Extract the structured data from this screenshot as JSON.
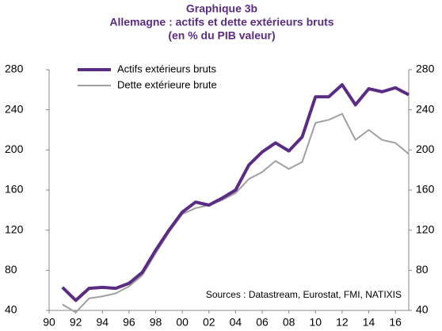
{
  "chart_data": {
    "type": "line",
    "title": [
      "Graphique 3b",
      "Allemagne : actifs et dette extérieurs bruts",
      "(en % du PIB valeur)"
    ],
    "annotation": "Sources : Datastream, Eurostat, FMI, NATIXIS",
    "x": [
      1991,
      1992,
      1993,
      1994,
      1995,
      1996,
      1997,
      1998,
      1999,
      2000,
      2001,
      2002,
      2003,
      2004,
      2005,
      2006,
      2007,
      2008,
      2009,
      2010,
      2011,
      2012,
      2013,
      2014,
      2015,
      2016,
      2017
    ],
    "series": [
      {
        "name": "Actifs extérieurs bruts",
        "color": "#5b2c83",
        "width": 4,
        "values": [
          63,
          50,
          62,
          63,
          62,
          67,
          78,
          100,
          120,
          138,
          148,
          145,
          152,
          160,
          185,
          198,
          207,
          199,
          213,
          253,
          253,
          265,
          245,
          261,
          258,
          262,
          255
        ]
      },
      {
        "name": "Dette extérieure brute",
        "color": "#a0a0a0",
        "width": 2,
        "values": [
          46,
          38,
          52,
          54,
          57,
          64,
          75,
          97,
          118,
          136,
          142,
          145,
          150,
          157,
          171,
          178,
          189,
          181,
          188,
          227,
          230,
          236,
          210,
          220,
          210,
          207,
          196
        ]
      }
    ],
    "xlim": [
      1990,
      2017
    ],
    "xticks": [
      {
        "value": 1990,
        "label": "90"
      },
      {
        "value": 1992,
        "label": "92"
      },
      {
        "value": 1994,
        "label": "94"
      },
      {
        "value": 1996,
        "label": "96"
      },
      {
        "value": 1998,
        "label": "98"
      },
      {
        "value": 2000,
        "label": "00"
      },
      {
        "value": 2002,
        "label": "02"
      },
      {
        "value": 2004,
        "label": "04"
      },
      {
        "value": 2006,
        "label": "06"
      },
      {
        "value": 2008,
        "label": "08"
      },
      {
        "value": 2010,
        "label": "10"
      },
      {
        "value": 2012,
        "label": "12"
      },
      {
        "value": 2014,
        "label": "14"
      },
      {
        "value": 2016,
        "label": "16"
      }
    ],
    "ylim": [
      40,
      280
    ],
    "yticks": [
      40,
      80,
      120,
      160,
      200,
      240,
      280
    ],
    "y2lim": [
      40,
      280
    ],
    "y2ticks": [
      40,
      80,
      120,
      160,
      200,
      240,
      280
    ],
    "grid": false,
    "legend": "top-left"
  }
}
